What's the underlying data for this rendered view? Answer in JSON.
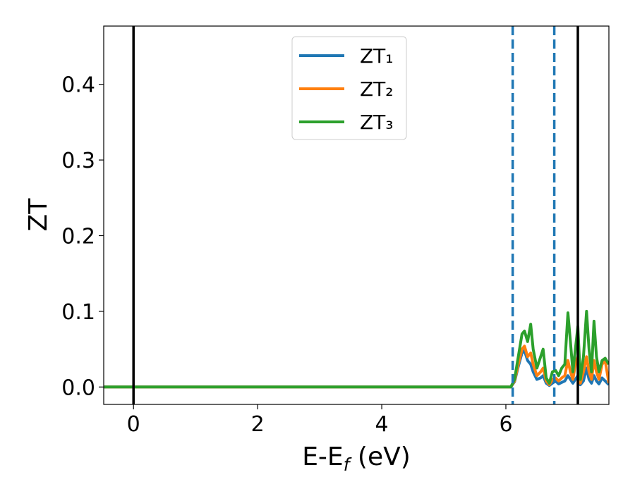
{
  "chart_data": {
    "type": "line",
    "xlabel": [
      "E-E",
      "f",
      " (eV)"
    ],
    "ylabel": "ZT",
    "x": [
      -0.48,
      6.08,
      6.14,
      6.2,
      6.26,
      6.3,
      6.35,
      6.4,
      6.44,
      6.5,
      6.56,
      6.6,
      6.65,
      6.7,
      6.75,
      6.8,
      6.85,
      6.9,
      6.95,
      7.0,
      7.04,
      7.08,
      7.12,
      7.16,
      7.2,
      7.25,
      7.3,
      7.34,
      7.38,
      7.42,
      7.46,
      7.5,
      7.55,
      7.6,
      7.66
    ],
    "series": [
      {
        "name": "ZT₁",
        "color": "#1f77b4",
        "values": [
          0,
          0,
          0.007,
          0.027,
          0.045,
          0.048,
          0.035,
          0.03,
          0.02,
          0.01,
          0.012,
          0.015,
          0.005,
          0.002,
          0.005,
          0.008,
          0.004,
          0.006,
          0.008,
          0.015,
          0.01,
          0.005,
          0.01,
          0.015,
          0.003,
          0.008,
          0.025,
          0.01,
          0.005,
          0.015,
          0.008,
          0.004,
          0.012,
          0.008,
          0.003
        ]
      },
      {
        "name": "ZT₂",
        "color": "#ff7f0e",
        "values": [
          0,
          0,
          0.008,
          0.03,
          0.05,
          0.054,
          0.04,
          0.045,
          0.03,
          0.015,
          0.02,
          0.025,
          0.008,
          0.003,
          0.01,
          0.012,
          0.008,
          0.012,
          0.015,
          0.035,
          0.02,
          0.01,
          0.03,
          0.04,
          0.005,
          0.02,
          0.04,
          0.02,
          0.01,
          0.035,
          0.02,
          0.01,
          0.03,
          0.035,
          0.005
        ]
      },
      {
        "name": "ZT₃",
        "color": "#2ca02c",
        "values": [
          0,
          0,
          0.01,
          0.04,
          0.07,
          0.074,
          0.06,
          0.083,
          0.05,
          0.025,
          0.04,
          0.05,
          0.012,
          0.005,
          0.02,
          0.022,
          0.015,
          0.025,
          0.03,
          0.098,
          0.06,
          0.02,
          0.05,
          0.08,
          0.01,
          0.04,
          0.1,
          0.05,
          0.02,
          0.087,
          0.04,
          0.02,
          0.035,
          0.038,
          0.03
        ]
      }
    ],
    "vlines": [
      {
        "x": 0,
        "color": "#000000",
        "style": "solid"
      },
      {
        "x": 7.16,
        "color": "#000000",
        "style": "solid"
      },
      {
        "x": 6.11,
        "color": "#1f77b4",
        "style": "dashed"
      },
      {
        "x": 6.78,
        "color": "#1f77b4",
        "style": "dashed"
      }
    ],
    "xlim": [
      -0.48,
      7.66
    ],
    "ylim": [
      -0.023,
      0.477
    ],
    "xticks": [
      0,
      2,
      4,
      6
    ],
    "yticks": [
      {
        "value": 0,
        "label": "0.0"
      },
      0.1,
      0.2,
      0.3,
      0.4
    ],
    "grid": false,
    "legend": "upper center"
  }
}
